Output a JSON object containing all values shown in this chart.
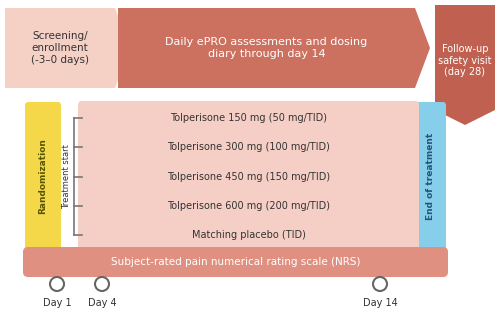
{
  "bg_color": "#ffffff",
  "screening_text": "Screening/\nenrollment\n(-3–0 days)",
  "screening_box_color": "#f5d0c5",
  "arrow_color": "#cc7060",
  "arrow_text": "Daily ePRO assessments and dosing\ndiary through day 14",
  "followup_text": "Follow-up\nsafety visit\n(day 28)",
  "followup_color": "#c06050",
  "randomization_text": "Randomization",
  "treatment_start_text": "Treatment start",
  "rand_box_color": "#f5d84a",
  "end_of_treatment_text": "End of treatment",
  "eot_color": "#87ceeb",
  "treatment_arms": [
    "Tolperisone 150 mg (50 mg/TID)",
    "Tolperisone 300 mg (100 mg/TID)",
    "Tolperisone 450 mg (150 mg/TID)",
    "Tolperisone 600 mg (200 mg/TID)",
    "Matching placebo (TID)"
  ],
  "treatment_arm_color": "#f5cfc5",
  "nrs_color": "#e09080",
  "nrs_text": "Subject-rated pain numerical rating scale (NRS)",
  "day_labels": [
    "Day 1",
    "Day 4",
    "Day 14"
  ],
  "circle_color": "#ffffff",
  "circle_edge_color": "#666666",
  "text_color": "#333333",
  "line_color": "#777777"
}
